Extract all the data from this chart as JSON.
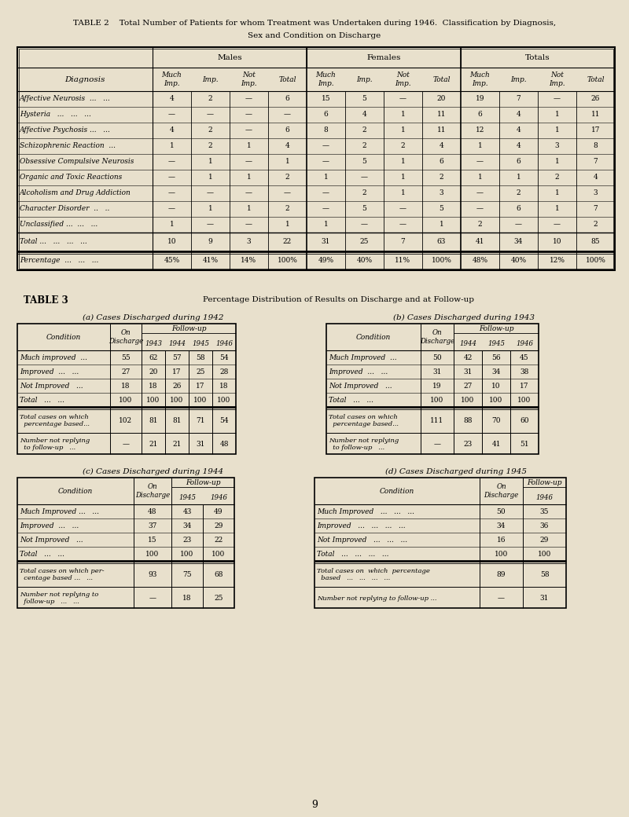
{
  "bg_color": "#e8e0cc",
  "table2_rows": [
    [
      "Affective Neurosis  ...   ...",
      "4",
      "2",
      "—",
      "6",
      "15",
      "5",
      "—",
      "20",
      "19",
      "7",
      "—",
      "26"
    ],
    [
      "Hysteria   ...   ...   ...",
      "—",
      "—",
      "—",
      "—",
      "6",
      "4",
      "1",
      "11",
      "6",
      "4",
      "1",
      "11"
    ],
    [
      "Affective Psychosis ...   ...",
      "4",
      "2",
      "—",
      "6",
      "8",
      "2",
      "1",
      "11",
      "12",
      "4",
      "1",
      "17"
    ],
    [
      "Schizophrenic Reaction  ...",
      "1",
      "2",
      "1",
      "4",
      "—",
      "2",
      "2",
      "4",
      "1",
      "4",
      "3",
      "8"
    ],
    [
      "Obsessive Compulsive Neurosis",
      "—",
      "1",
      "—",
      "1",
      "—",
      "5",
      "1",
      "6",
      "—",
      "6",
      "1",
      "7"
    ],
    [
      "Organic and Toxic Reactions",
      "—",
      "1",
      "1",
      "2",
      "1",
      "—",
      "1",
      "2",
      "1",
      "1",
      "2",
      "4"
    ],
    [
      "Alcoholism and Drug Addiction",
      "—",
      "—",
      "—",
      "—",
      "—",
      "2",
      "1",
      "3",
      "—",
      "2",
      "1",
      "3"
    ],
    [
      "Character Disorder  ..   ..",
      "—",
      "1",
      "1",
      "2",
      "—",
      "5",
      "—",
      "5",
      "—",
      "6",
      "1",
      "7"
    ],
    [
      "Unclassified ...  ...   ...",
      "1",
      "—",
      "—",
      "1",
      "1",
      "—",
      "—",
      "1",
      "2",
      "—",
      "—",
      "2"
    ]
  ],
  "table2_total": [
    "Total ...   ...   ...   ...",
    "10",
    "9",
    "3",
    "22",
    "31",
    "25",
    "7",
    "63",
    "41",
    "34",
    "10",
    "85"
  ],
  "table2_pct": [
    "Percentage  ...   ...   ...",
    "45%",
    "41%",
    "14%",
    "100%",
    "49%",
    "40%",
    "11%",
    "100%",
    "48%",
    "40%",
    "12%",
    "100%"
  ],
  "table3a": {
    "rows": [
      [
        "Much improved  ...",
        "55",
        "62",
        "57",
        "58",
        "54"
      ],
      [
        "Improved  ...   ...",
        "27",
        "20",
        "17",
        "25",
        "28"
      ],
      [
        "Not Improved   ...",
        "18",
        "18",
        "26",
        "17",
        "18"
      ]
    ],
    "total": [
      "Total   ...   ...",
      "100",
      "100",
      "100",
      "100",
      "100"
    ],
    "cases": [
      "Total cases on which\n  percentage based...",
      "102",
      "81",
      "81",
      "71",
      "54"
    ],
    "not_replying": [
      "Number not replying\n  to follow-up   ...",
      "—",
      "21",
      "21",
      "31",
      "48"
    ],
    "years": [
      "1943",
      "1944",
      "1945",
      "1946"
    ]
  },
  "table3b": {
    "rows": [
      [
        "Much Improved  ...",
        "50",
        "42",
        "56",
        "45"
      ],
      [
        "Improved  ...   ...",
        "31",
        "31",
        "34",
        "38"
      ],
      [
        "Not Improved   ...",
        "19",
        "27",
        "10",
        "17"
      ]
    ],
    "total": [
      "Total   ...   ...",
      "100",
      "100",
      "100",
      "100"
    ],
    "cases": [
      "Total cases on which\n  percentage based...",
      "111",
      "88",
      "70",
      "60"
    ],
    "not_replying": [
      "Number not replying\n  to follow-up   ...",
      "—",
      "23",
      "41",
      "51"
    ],
    "years": [
      "1944",
      "1945",
      "1946"
    ]
  },
  "table3c": {
    "rows": [
      [
        "Much Improved ...   ...",
        "48",
        "43",
        "49"
      ],
      [
        "Improved  ...   ...",
        "37",
        "34",
        "29"
      ],
      [
        "Not Improved   ...",
        "15",
        "23",
        "22"
      ]
    ],
    "total": [
      "Total   ...   ...",
      "100",
      "100",
      "100"
    ],
    "cases": [
      "Total cases on which per-\n  centage based ...   ...",
      "93",
      "75",
      "68"
    ],
    "not_replying": [
      "Number not replying to\n  follow-up   ...   ...",
      "—",
      "18",
      "25"
    ],
    "years": [
      "1945",
      "1946"
    ]
  },
  "table3d": {
    "rows": [
      [
        "Much Improved   ...   ...   ...",
        "50",
        "35"
      ],
      [
        "Improved   ...   ...   ...   ...",
        "34",
        "36"
      ],
      [
        "Not Improved   ...   ...   ...",
        "16",
        "29"
      ]
    ],
    "total": [
      "Total   ...   ...   ...   ...",
      "100",
      "100"
    ],
    "cases": [
      "Total cases on  which  percentage\n  based   ...   ...   ...   ...",
      "89",
      "58"
    ],
    "not_replying": [
      "Number not replying to follow-up ...",
      "—",
      "31"
    ],
    "years": [
      "1946"
    ]
  }
}
